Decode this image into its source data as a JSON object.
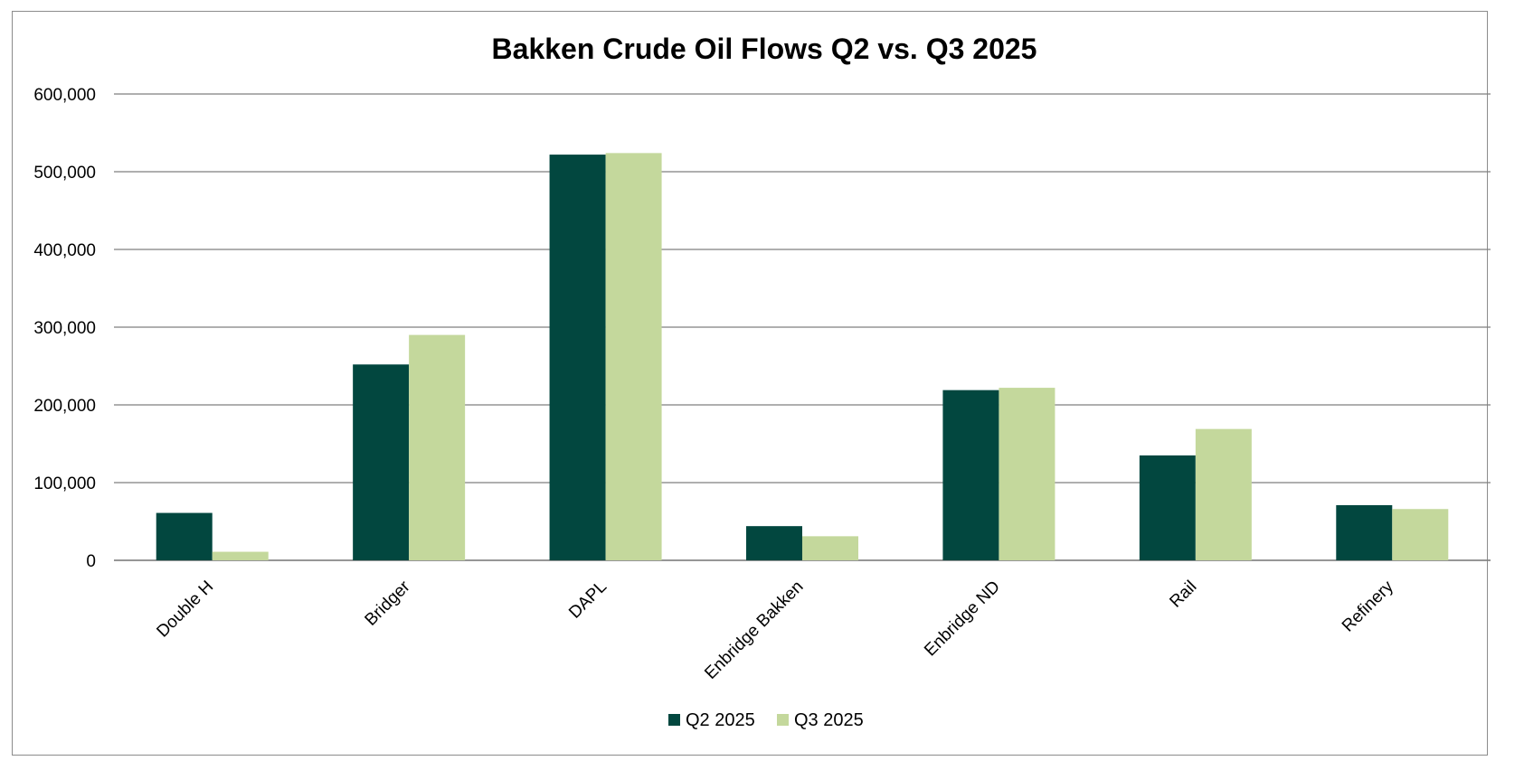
{
  "chart_data": {
    "type": "bar",
    "title": "Bakken Crude Oil Flows Q2 vs. Q3 2025",
    "xlabel": "",
    "ylabel": "",
    "categories": [
      "Double H",
      "Bridger",
      "DAPL",
      "Enbridge Bakken",
      "Enbridge ND",
      "Rail",
      "Refinery"
    ],
    "series": [
      {
        "name": "Q2 2025",
        "color": "#02473F",
        "values": [
          61000,
          252000,
          522000,
          44000,
          219000,
          135000,
          71000
        ]
      },
      {
        "name": "Q3 2025",
        "color": "#C4D89C",
        "values": [
          11000,
          290000,
          524000,
          31000,
          222000,
          169000,
          66000
        ]
      }
    ],
    "ylim": [
      0,
      600000
    ],
    "yticks": [
      0,
      100000,
      200000,
      300000,
      400000,
      500000,
      600000
    ],
    "ytick_labels": [
      "0",
      "100,000",
      "200,000",
      "300,000",
      "400,000",
      "500,000",
      "600,000"
    ],
    "grid": true,
    "legend_position": "bottom"
  }
}
